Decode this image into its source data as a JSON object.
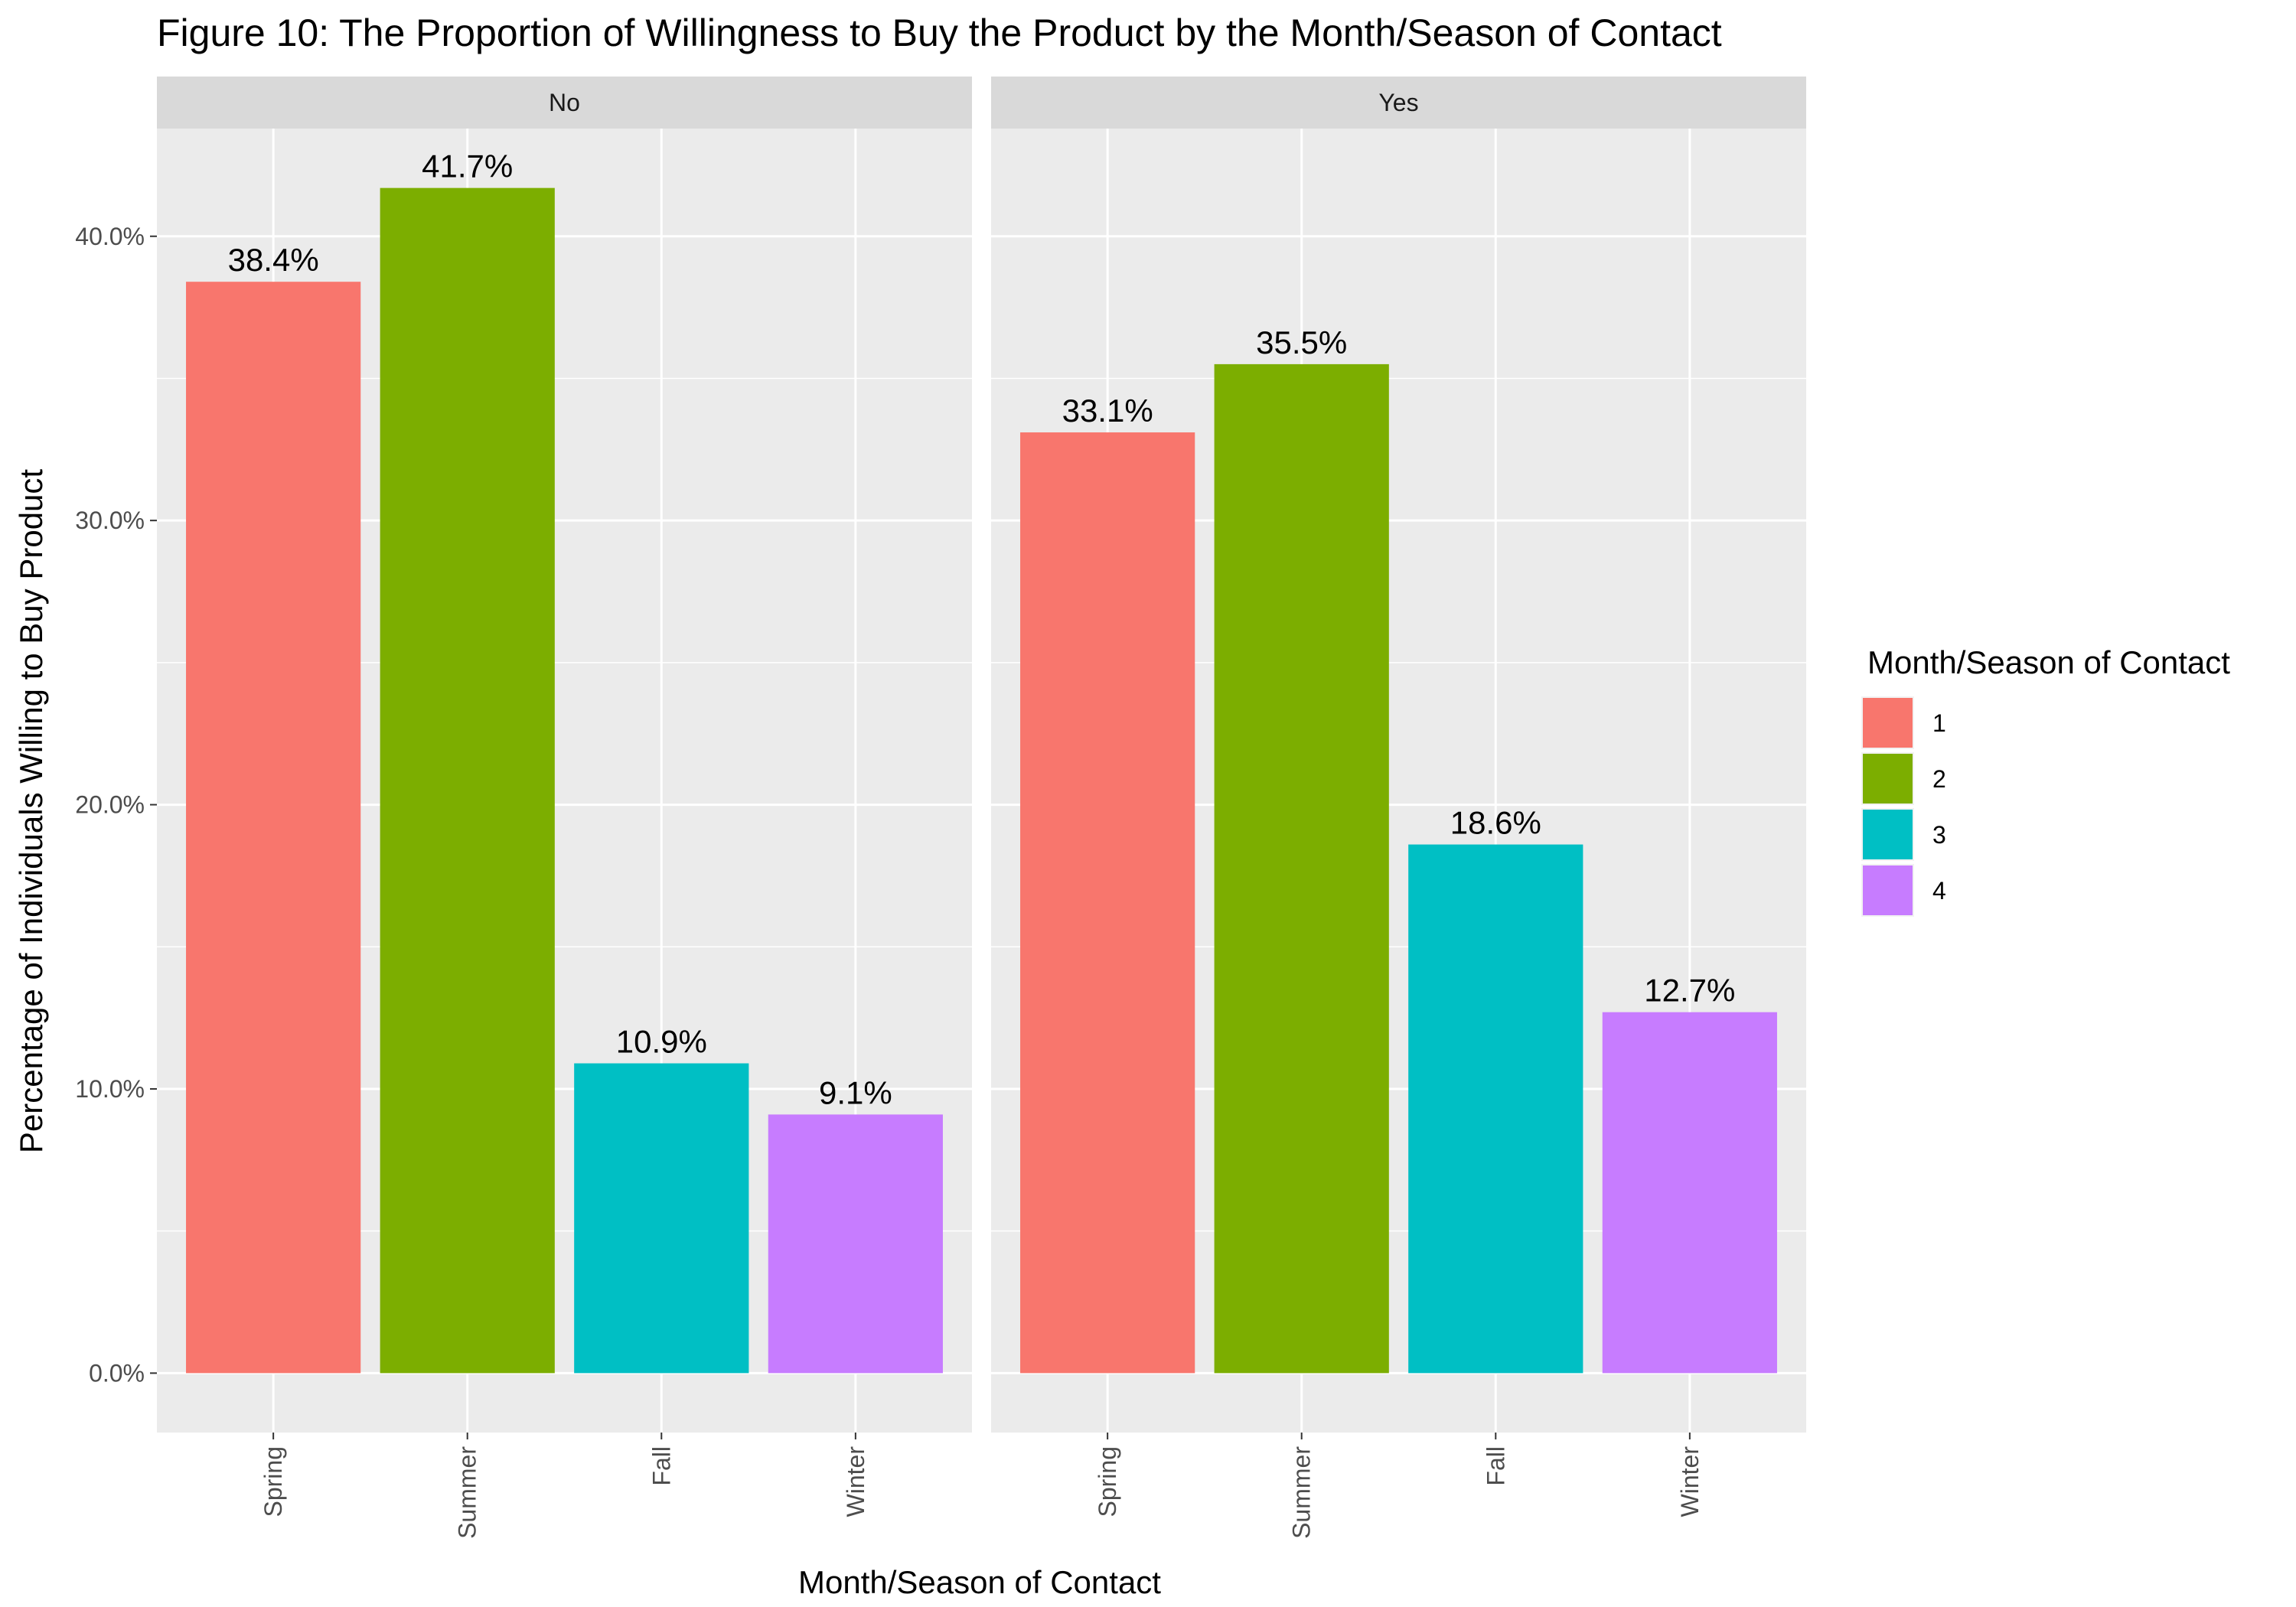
{
  "chart_data": {
    "type": "bar",
    "title": "Figure 10: The Proportion of Willingness to Buy the Product by the Month/Season of Contact",
    "xlabel": "Month/Season of Contact",
    "ylabel": "Percentage of Individuals Willing to Buy Product",
    "categories": [
      "Spring",
      "Summer",
      "Fall",
      "Winter"
    ],
    "y_ticks": [
      {
        "value": 0,
        "label": "0.0%"
      },
      {
        "value": 10,
        "label": "10.0%"
      },
      {
        "value": 20,
        "label": "20.0%"
      },
      {
        "value": 30,
        "label": "30.0%"
      },
      {
        "value": 40,
        "label": "40.0%"
      }
    ],
    "ylim": [
      -2.09,
      43.79
    ],
    "grid": true,
    "facets": [
      {
        "label": "No",
        "values": [
          38.4,
          41.7,
          10.9,
          9.1
        ],
        "value_labels": [
          "38.4%",
          "41.7%",
          "10.9%",
          "9.1%"
        ]
      },
      {
        "label": "Yes",
        "values": [
          33.1,
          35.5,
          18.6,
          12.7
        ],
        "value_labels": [
          "33.1%",
          "35.5%",
          "18.6%",
          "12.7%"
        ]
      }
    ],
    "fill_by_category": [
      "1",
      "2",
      "3",
      "4"
    ],
    "legend": {
      "title": "Month/Season of Contact",
      "position": "right",
      "entries": [
        {
          "label": "1",
          "color": "#F8766D"
        },
        {
          "label": "2",
          "color": "#7CAE00"
        },
        {
          "label": "3",
          "color": "#00BFC4"
        },
        {
          "label": "4",
          "color": "#C77CFF"
        }
      ]
    },
    "colors": {
      "panel_background": "#EBEBEB",
      "grid_line": "#FFFFFF",
      "strip_background": "#D9D9D9",
      "tick_mark": "#333333"
    }
  }
}
